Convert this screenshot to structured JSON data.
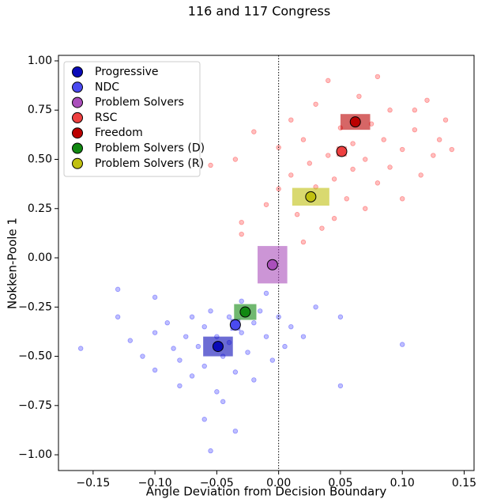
{
  "chart_data": {
    "type": "scatter",
    "title": "116 and 117 Congress",
    "x_label": "Angle Deviation from Decision Boundary",
    "y_label": "Nokken-Poole 1",
    "xlim": [
      -0.178,
      0.158
    ],
    "ylim": [
      -1.08,
      1.028
    ],
    "xticks": [
      {
        "value": -0.15,
        "label": "−0.15"
      },
      {
        "value": -0.1,
        "label": "−0.10"
      },
      {
        "value": -0.05,
        "label": "−0.05"
      },
      {
        "value": 0,
        "label": "0.00"
      },
      {
        "value": 0.05,
        "label": "0.05"
      },
      {
        "value": 0.1,
        "label": "0.10"
      },
      {
        "value": 0.15,
        "label": "0.15"
      }
    ],
    "yticks": [
      {
        "value": -1,
        "label": "−1.00"
      },
      {
        "value": -0.75,
        "label": "−0.75"
      },
      {
        "value": -0.5,
        "label": "−0.50"
      },
      {
        "value": -0.25,
        "label": "−0.25"
      },
      {
        "value": 0,
        "label": "0.00"
      },
      {
        "value": 0.25,
        "label": "0.25"
      },
      {
        "value": 0.5,
        "label": "0.50"
      },
      {
        "value": 0.75,
        "label": "0.75"
      },
      {
        "value": 1,
        "label": "1.00"
      }
    ],
    "reference_line_x": 0,
    "legend": "upper left",
    "points": [
      {
        "color": "#4444ff",
        "x": [
          -0.16,
          -0.13,
          -0.12,
          -0.11,
          -0.1,
          -0.1,
          -0.09,
          -0.085,
          -0.08,
          -0.075,
          -0.07,
          -0.07,
          -0.065,
          -0.06,
          -0.06,
          -0.055,
          -0.05,
          -0.05,
          -0.045,
          -0.04,
          -0.04,
          -0.035,
          -0.03,
          -0.03,
          -0.025,
          -0.02,
          -0.02,
          -0.015,
          -0.01,
          -0.01,
          -0.005,
          0.0,
          0.005,
          0.01,
          0.02,
          0.03,
          0.05,
          0.1,
          -0.06,
          -0.035,
          -0.055,
          -0.08,
          -0.045,
          -0.13,
          -0.1,
          0.05
        ],
        "y": [
          -0.46,
          -0.3,
          -0.42,
          -0.5,
          -0.38,
          -0.57,
          -0.33,
          -0.46,
          -0.52,
          -0.4,
          -0.3,
          -0.6,
          -0.45,
          -0.35,
          -0.55,
          -0.27,
          -0.4,
          -0.68,
          -0.5,
          -0.3,
          -0.43,
          -0.58,
          -0.22,
          -0.38,
          -0.48,
          -0.33,
          -0.62,
          -0.27,
          -0.4,
          -0.18,
          -0.52,
          -0.3,
          -0.45,
          -0.35,
          -0.4,
          -0.25,
          -0.3,
          -0.44,
          -0.82,
          -0.88,
          -0.98,
          -0.65,
          -0.73,
          -0.16,
          -0.2,
          -0.65
        ]
      },
      {
        "color": "#ff4444",
        "x": [
          -0.055,
          -0.035,
          -0.03,
          -0.03,
          -0.02,
          -0.01,
          0.0,
          0.0,
          0.01,
          0.01,
          0.015,
          0.02,
          0.025,
          0.03,
          0.03,
          0.035,
          0.04,
          0.04,
          0.045,
          0.05,
          0.055,
          0.06,
          0.06,
          0.065,
          0.07,
          0.07,
          0.075,
          0.08,
          0.085,
          0.09,
          0.09,
          0.1,
          0.1,
          0.11,
          0.115,
          0.12,
          0.125,
          0.13,
          0.135,
          0.14,
          0.08,
          0.045,
          0.02,
          0.11
        ],
        "y": [
          0.47,
          0.5,
          0.18,
          0.12,
          0.64,
          0.27,
          0.56,
          0.35,
          0.7,
          0.42,
          0.22,
          0.6,
          0.48,
          0.78,
          0.36,
          0.15,
          0.9,
          0.52,
          0.4,
          0.66,
          0.3,
          0.58,
          0.45,
          0.82,
          0.5,
          0.25,
          0.68,
          0.38,
          0.6,
          0.75,
          0.46,
          0.55,
          0.3,
          0.65,
          0.42,
          0.8,
          0.52,
          0.6,
          0.7,
          0.55,
          0.92,
          0.2,
          0.08,
          0.75
        ]
      }
    ],
    "series": [
      {
        "name": "Progressive",
        "color": "#0a0ab8",
        "x": -0.049,
        "y": -0.45,
        "x_err": 0.012,
        "y_err": 0.05
      },
      {
        "name": "NDC",
        "color": "#4a4af0",
        "x": -0.035,
        "y": -0.34,
        "x_err": 0.004,
        "y_err": 0.03
      },
      {
        "name": "Problem Solvers",
        "color": "#aa4fbb",
        "x": -0.005,
        "y": -0.035,
        "x_err": 0.012,
        "y_err": 0.095
      },
      {
        "name": "RSC",
        "color": "#ee4040",
        "x": 0.051,
        "y": 0.54,
        "x_err": 0.004,
        "y_err": 0.025
      },
      {
        "name": "Freedom",
        "color": "#bb0000",
        "x": 0.062,
        "y": 0.69,
        "x_err": 0.012,
        "y_err": 0.04
      },
      {
        "name": "Problem Solvers (D)",
        "color": "#118811",
        "x": -0.027,
        "y": -0.275,
        "x_err": 0.009,
        "y_err": 0.04
      },
      {
        "name": "Problem Solvers (R)",
        "color": "#c0c010",
        "x": 0.026,
        "y": 0.31,
        "x_err": 0.015,
        "y_err": 0.045
      }
    ]
  }
}
